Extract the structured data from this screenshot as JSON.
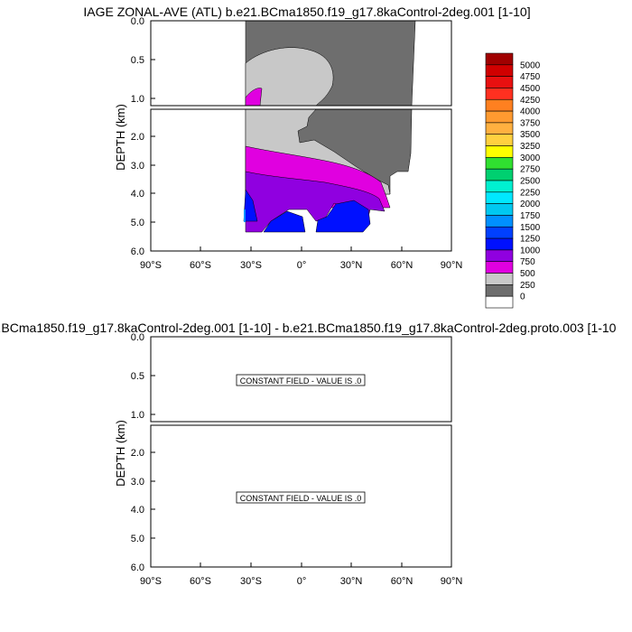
{
  "chart_data": [
    {
      "type": "heatmap",
      "title": "IAGE ZONAL-AVE (ATL) b.e21.BCma1850.f19_g17.8kaControl-2deg.001 [1-10]",
      "ylabel": "DEPTH (km)",
      "top_yticks": [
        "0.0",
        "0.5",
        "1.0"
      ],
      "bottom_yticks": [
        "2.0",
        "3.0",
        "4.0",
        "5.0",
        "6.0"
      ],
      "xticks": [
        "90°S",
        "60°S",
        "30°S",
        "0°",
        "30°N",
        "60°N",
        "90°N"
      ],
      "colorbar": {
        "labels": [
          "5000",
          "4750",
          "4500",
          "4250",
          "4000",
          "3750",
          "3500",
          "3250",
          "3000",
          "2750",
          "2500",
          "2250",
          "2000",
          "1750",
          "1500",
          "1250",
          "1000",
          "750",
          "500",
          "250",
          "0"
        ],
        "colors": [
          "#a00000",
          "#d00000",
          "#e81010",
          "#ff3020",
          "#ff8020",
          "#ff9a30",
          "#ffb040",
          "#ffd040",
          "#ffff00",
          "#30e030",
          "#00d070",
          "#00f0d0",
          "#00e8ff",
          "#00c8f0",
          "#0090ff",
          "#0040ff",
          "#0010ff",
          "#9000e0",
          "#e000e0",
          "#c8c8c8",
          "#6e6e6e",
          "#ffffff"
        ]
      }
    },
    {
      "type": "heatmap",
      "title": ".BCma1850.f19_g17.8kaControl-2deg.001 [1-10] - b.e21.BCma1850.f19_g17.8kaControl-2deg.proto.003 [1-10",
      "ylabel": "DEPTH (km)",
      "top_yticks": [
        "0.0",
        "0.5",
        "1.0"
      ],
      "bottom_yticks": [
        "2.0",
        "3.0",
        "4.0",
        "5.0",
        "6.0"
      ],
      "xticks": [
        "90°S",
        "60°S",
        "30°S",
        "0°",
        "30°N",
        "60°N",
        "90°N"
      ],
      "annotation": "CONSTANT FIELD - VALUE IS .0"
    }
  ]
}
